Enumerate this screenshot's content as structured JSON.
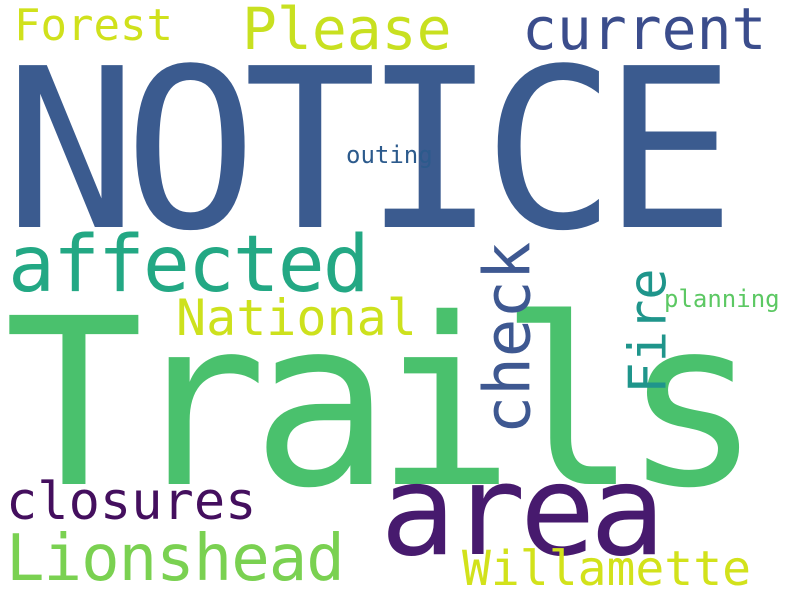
{
  "word_cloud": {
    "background_color": "#ffffff",
    "words": [
      {
        "key": "notice",
        "text": "NOTICE",
        "color": "#3b5b8f",
        "orientation": "horizontal"
      },
      {
        "key": "trails",
        "text": "Trails",
        "color": "#4ac16d",
        "orientation": "horizontal"
      },
      {
        "key": "area",
        "text": "area",
        "color": "#471a6e",
        "orientation": "horizontal"
      },
      {
        "key": "affected",
        "text": "affected",
        "color": "#23a884",
        "orientation": "horizontal"
      },
      {
        "key": "please",
        "text": "Please",
        "color": "#c8e020",
        "orientation": "horizontal"
      },
      {
        "key": "current",
        "text": "current",
        "color": "#3b4d8c",
        "orientation": "horizontal"
      },
      {
        "key": "forest",
        "text": "Forest",
        "color": "#d0e11c",
        "orientation": "horizontal"
      },
      {
        "key": "outing",
        "text": "outing",
        "color": "#2c5a8c",
        "orientation": "horizontal"
      },
      {
        "key": "national",
        "text": "National",
        "color": "#cde11d",
        "orientation": "horizontal"
      },
      {
        "key": "planning",
        "text": "planning",
        "color": "#5cc863",
        "orientation": "horizontal"
      },
      {
        "key": "closures",
        "text": "closures",
        "color": "#440f5e",
        "orientation": "horizontal"
      },
      {
        "key": "lionshead",
        "text": "Lionshead",
        "color": "#7ad151",
        "orientation": "horizontal"
      },
      {
        "key": "willamette",
        "text": "Willamette",
        "color": "#d2e21b",
        "orientation": "horizontal"
      },
      {
        "key": "check",
        "text": "check",
        "color": "#3e5891",
        "orientation": "vertical"
      },
      {
        "key": "fire",
        "text": "Fire",
        "color": "#1f958b",
        "orientation": "vertical"
      }
    ]
  }
}
